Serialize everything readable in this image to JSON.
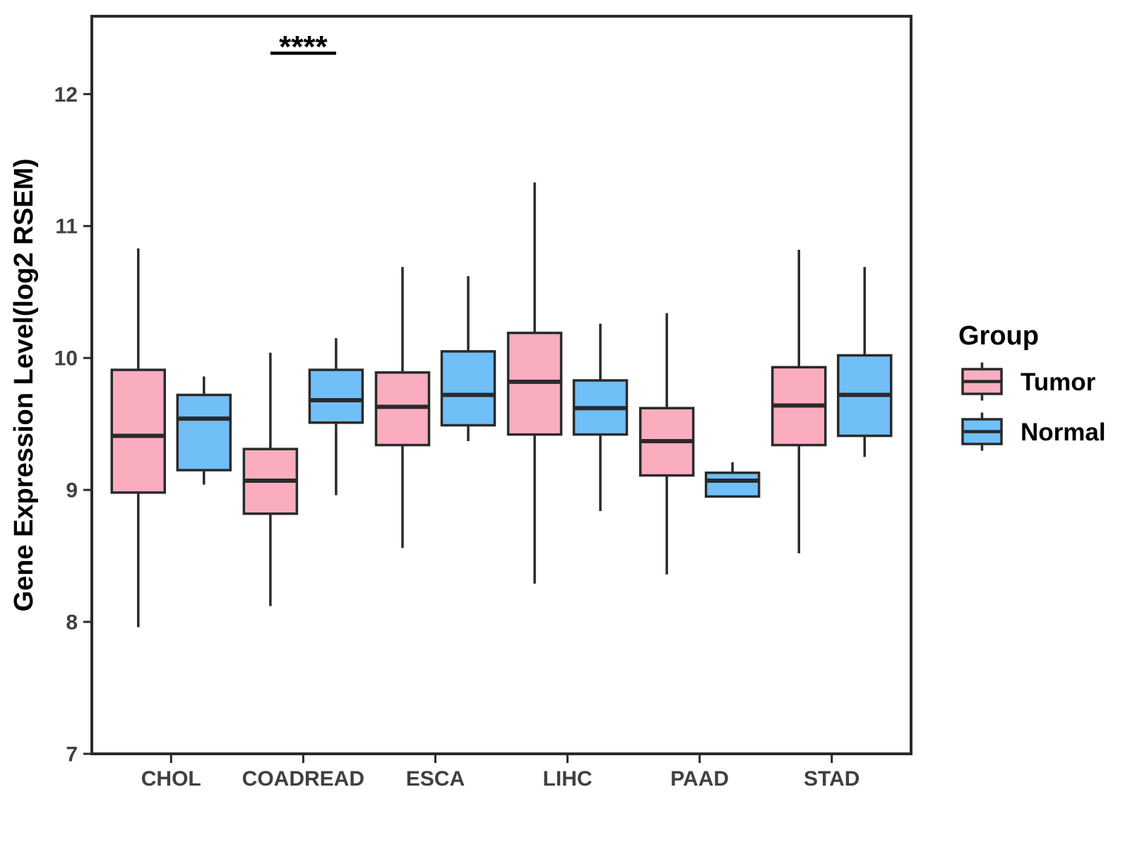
{
  "colors": {
    "tumor_fill": "#FBADC0",
    "normal_fill": "#71BFF7",
    "line": "#2A2A2A",
    "tick_text": "#404040",
    "title_text": "#000000",
    "background": "#FFFFFF"
  },
  "legend": {
    "title": "Group"
  },
  "chart_data": {
    "type": "boxplot",
    "title": "",
    "xlabel": "",
    "ylabel": "Gene Expression Level(log2 RSEM)",
    "ylim": [
      7,
      12.59
    ],
    "yticks": [
      7,
      8,
      9,
      10,
      11,
      12
    ],
    "grid": false,
    "legend_position": "right",
    "categories": [
      "CHOL",
      "COADREAD",
      "ESCA",
      "LIHC",
      "PAAD",
      "STAD"
    ],
    "series": [
      {
        "name": "Tumor",
        "fill": "#FBADC0",
        "boxes": [
          {
            "category": "CHOL",
            "min": 7.96,
            "q1": 8.98,
            "median": 9.41,
            "q3": 9.91,
            "max": 10.83
          },
          {
            "category": "COADREAD",
            "min": 8.12,
            "q1": 8.82,
            "median": 9.07,
            "q3": 9.31,
            "max": 10.04
          },
          {
            "category": "ESCA",
            "min": 8.56,
            "q1": 9.34,
            "median": 9.63,
            "q3": 9.89,
            "max": 10.69
          },
          {
            "category": "LIHC",
            "min": 8.29,
            "q1": 9.42,
            "median": 9.82,
            "q3": 10.19,
            "max": 11.33
          },
          {
            "category": "PAAD",
            "min": 8.36,
            "q1": 9.11,
            "median": 9.37,
            "q3": 9.62,
            "max": 10.34
          },
          {
            "category": "STAD",
            "min": 8.52,
            "q1": 9.34,
            "median": 9.64,
            "q3": 9.93,
            "max": 10.82
          }
        ]
      },
      {
        "name": "Normal",
        "fill": "#71BFF7",
        "boxes": [
          {
            "category": "CHOL",
            "min": 9.04,
            "q1": 9.15,
            "median": 9.54,
            "q3": 9.72,
            "max": 9.86
          },
          {
            "category": "COADREAD",
            "min": 8.96,
            "q1": 9.51,
            "median": 9.68,
            "q3": 9.91,
            "max": 10.15
          },
          {
            "category": "ESCA",
            "min": 9.37,
            "q1": 9.49,
            "median": 9.72,
            "q3": 10.05,
            "max": 10.62
          },
          {
            "category": "LIHC",
            "min": 8.84,
            "q1": 9.42,
            "median": 9.62,
            "q3": 9.83,
            "max": 10.26
          },
          {
            "category": "PAAD",
            "min": 8.95,
            "q1": 8.95,
            "median": 9.07,
            "q3": 9.13,
            "max": 9.21
          },
          {
            "category": "STAD",
            "min": 9.25,
            "q1": 9.41,
            "median": 9.72,
            "q3": 10.02,
            "max": 10.69
          }
        ]
      }
    ],
    "annotations": [
      {
        "type": "significance",
        "category": "COADREAD",
        "label": "****",
        "bar_y": 12.31,
        "spans_series": [
          "Tumor",
          "Normal"
        ]
      }
    ]
  }
}
